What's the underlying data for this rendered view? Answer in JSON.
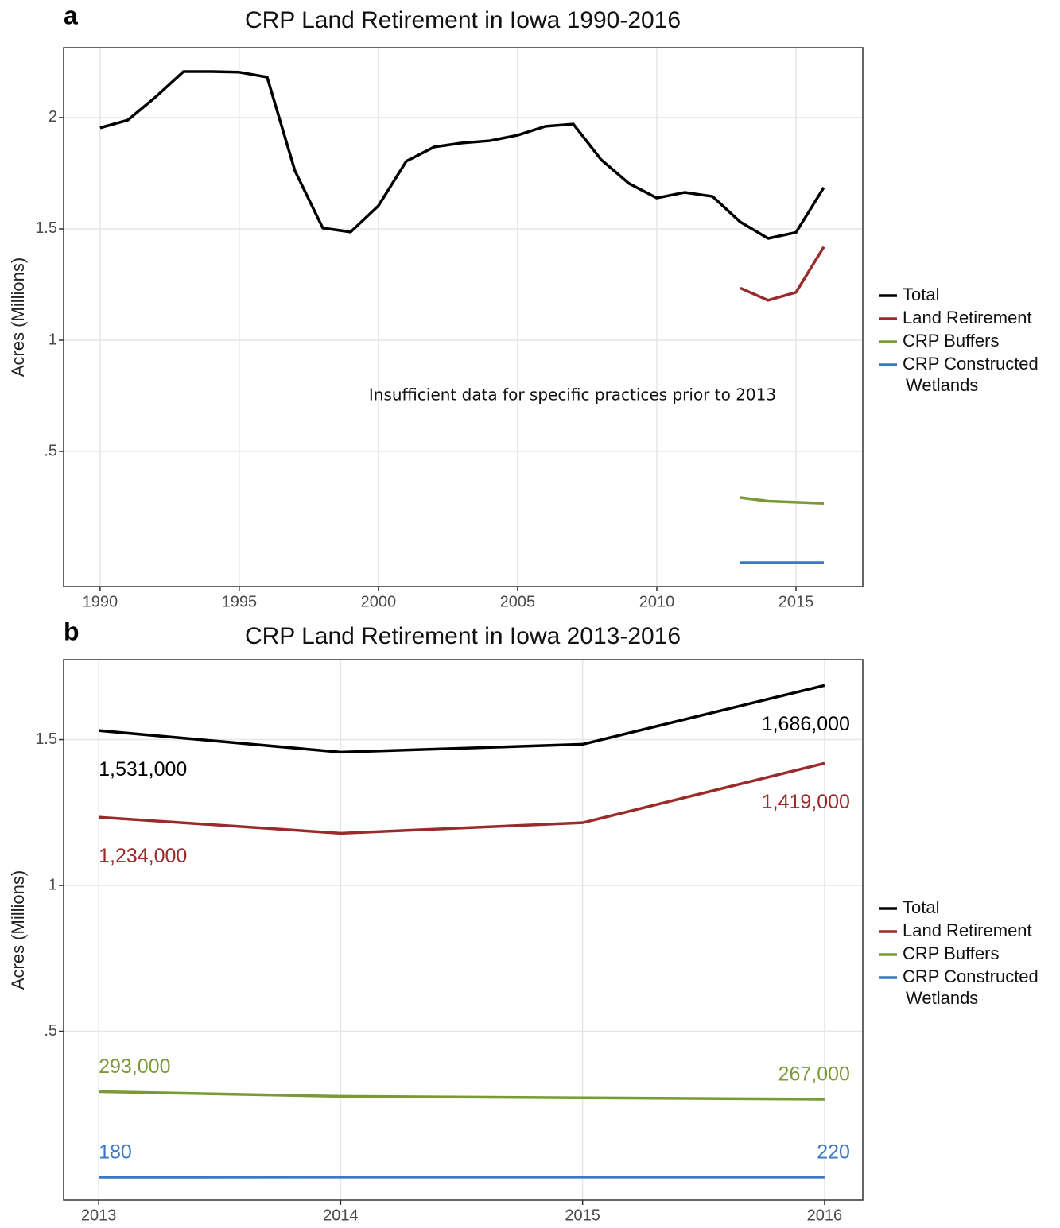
{
  "chart_data": [
    {
      "type": "line",
      "label": "a",
      "title": "CRP Land Retirement in Iowa 1990-2016",
      "y_label": "Acres (Millions)",
      "annotation": "Insufficient data for specific practices prior to 2013",
      "x": [
        1990,
        1991,
        1992,
        1993,
        1994,
        1995,
        1996,
        1997,
        1998,
        1999,
        2000,
        2001,
        2002,
        2003,
        2004,
        2005,
        2006,
        2007,
        2008,
        2009,
        2010,
        2011,
        2012,
        2013,
        2014,
        2015,
        2016
      ],
      "xlim": [
        1988.69,
        2017.4
      ],
      "xticks": [
        1990,
        1995,
        2000,
        2005,
        2010,
        2015
      ],
      "ylim": [
        -0.107,
        2.314
      ],
      "yticks": [
        {
          "value": 0.5,
          "label": ".5"
        },
        1,
        1.5,
        2
      ],
      "grid": true,
      "legend": "right",
      "series": [
        {
          "name": "Total",
          "color": "#000000",
          "values": [
            1.954,
            1.989,
            2.093,
            2.207,
            2.207,
            2.204,
            2.182,
            1.761,
            1.504,
            1.486,
            1.604,
            1.804,
            1.868,
            1.886,
            1.896,
            1.921,
            1.961,
            1.971,
            1.811,
            1.704,
            1.639,
            1.664,
            1.646,
            1.531,
            1.457,
            1.484,
            1.686
          ]
        },
        {
          "name": "Land Retirement",
          "color": "#9b2a2a",
          "values": [
            null,
            null,
            null,
            null,
            null,
            null,
            null,
            null,
            null,
            null,
            null,
            null,
            null,
            null,
            null,
            null,
            null,
            null,
            null,
            null,
            null,
            null,
            null,
            1.234,
            1.179,
            1.215,
            1.419
          ]
        },
        {
          "name": "CRP Buffers",
          "color": "#7a9a35",
          "values": [
            null,
            null,
            null,
            null,
            null,
            null,
            null,
            null,
            null,
            null,
            null,
            null,
            null,
            null,
            null,
            null,
            null,
            null,
            null,
            null,
            null,
            null,
            null,
            0.293,
            0.277,
            0.272,
            0.267
          ]
        },
        {
          "name": "CRP Constructed Wetlands",
          "color": "#3a78c2",
          "values": [
            null,
            null,
            null,
            null,
            null,
            null,
            null,
            null,
            null,
            null,
            null,
            null,
            null,
            null,
            null,
            null,
            null,
            null,
            null,
            null,
            null,
            null,
            null,
            0.00018,
            0.0002,
            0.0002,
            0.00022
          ]
        }
      ]
    },
    {
      "type": "line",
      "label": "b",
      "title": "CRP Land Retirement in Iowa 2013-2016",
      "y_label": "Acres (Millions)",
      "x": [
        2013,
        2014,
        2015,
        2016
      ],
      "xlim": [
        2012.855,
        2016.158
      ],
      "xticks": [
        2013,
        2014,
        2015,
        2016
      ],
      "ylim": [
        -0.079,
        1.774
      ],
      "yticks": [
        {
          "value": 0.5,
          "label": ".5"
        },
        1,
        1.5
      ],
      "grid": true,
      "legend": "right",
      "series": [
        {
          "name": "Total",
          "color": "#000000",
          "values": [
            1.531,
            1.457,
            1.484,
            1.686
          ],
          "value_labels": [
            "1,531,000",
            null,
            null,
            "1,686,000"
          ]
        },
        {
          "name": "Land Retirement",
          "color": "#9b2a2a",
          "values": [
            1.234,
            1.179,
            1.215,
            1.419
          ],
          "value_labels": [
            "1,234,000",
            null,
            null,
            "1,419,000"
          ]
        },
        {
          "name": "CRP Buffers",
          "color": "#7a9a35",
          "values": [
            0.293,
            0.277,
            0.272,
            0.267
          ],
          "value_labels": [
            "293,000",
            null,
            null,
            "267,000"
          ]
        },
        {
          "name": "CRP Constructed Wetlands",
          "color": "#3a78c2",
          "values": [
            0.00018,
            0.0002,
            0.0002,
            0.00022
          ],
          "value_labels": [
            "180",
            null,
            null,
            "220"
          ]
        }
      ]
    }
  ]
}
